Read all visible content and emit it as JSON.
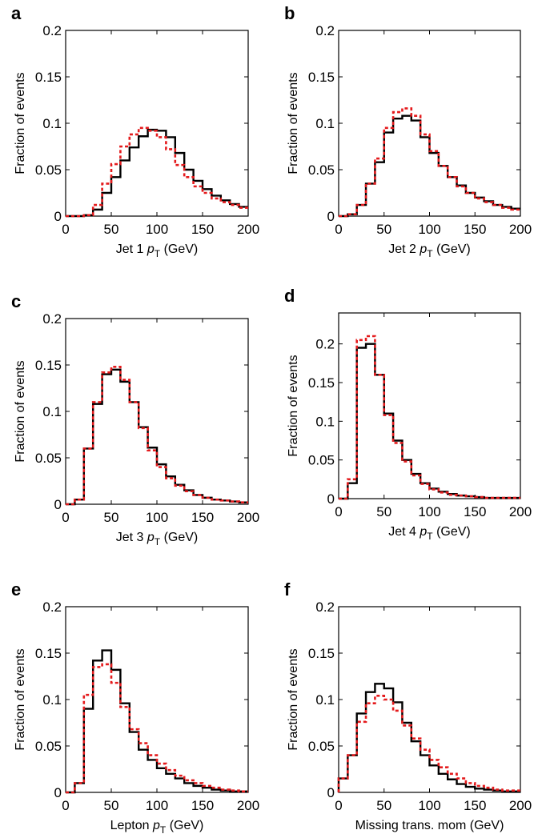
{
  "chart_data": [
    {
      "panel": "a",
      "type": "line",
      "step": true,
      "xlabel_main": "Jet 1 ",
      "xlabel_var": "p",
      "xlabel_sub": "T",
      "xlabel_unit": " (GeV)",
      "ylabel": "Fraction of events",
      "xlim": [
        0,
        200
      ],
      "ylim": [
        0,
        0.2
      ],
      "xticks": [
        "0",
        "50",
        "100",
        "150",
        "200"
      ],
      "yticks": [
        "0",
        "0.05",
        "0.1",
        "0.15",
        "0.2"
      ],
      "bin_edges": [
        0,
        10,
        20,
        30,
        40,
        50,
        60,
        70,
        80,
        90,
        100,
        110,
        120,
        130,
        140,
        150,
        160,
        170,
        180,
        190,
        200
      ],
      "series": [
        {
          "values": [
            0.0,
            0.0,
            0.001,
            0.007,
            0.025,
            0.042,
            0.06,
            0.074,
            0.086,
            0.093,
            0.092,
            0.085,
            0.068,
            0.05,
            0.038,
            0.029,
            0.022,
            0.017,
            0.013,
            0.01
          ],
          "color": "#000000",
          "style": "solid"
        },
        {
          "values": [
            0.0,
            0.0,
            0.001,
            0.012,
            0.035,
            0.056,
            0.075,
            0.088,
            0.095,
            0.092,
            0.085,
            0.072,
            0.055,
            0.042,
            0.032,
            0.025,
            0.019,
            0.015,
            0.012,
            0.009
          ],
          "color": "#e41a1c",
          "style": "dotted"
        }
      ]
    },
    {
      "panel": "b",
      "type": "line",
      "step": true,
      "xlabel_main": "Jet 2 ",
      "xlabel_var": "p",
      "xlabel_sub": "T",
      "xlabel_unit": " (GeV)",
      "ylabel": "Fraction of events",
      "xlim": [
        0,
        200
      ],
      "ylim": [
        0,
        0.2
      ],
      "xticks": [
        "0",
        "50",
        "100",
        "150",
        "200"
      ],
      "yticks": [
        "0",
        "0.05",
        "0.1",
        "0.15",
        "0.2"
      ],
      "bin_edges": [
        0,
        10,
        20,
        30,
        40,
        50,
        60,
        70,
        80,
        90,
        100,
        110,
        120,
        130,
        140,
        150,
        160,
        170,
        180,
        190,
        200
      ],
      "series": [
        {
          "values": [
            0.0,
            0.002,
            0.012,
            0.035,
            0.058,
            0.09,
            0.105,
            0.108,
            0.103,
            0.085,
            0.068,
            0.054,
            0.042,
            0.033,
            0.025,
            0.02,
            0.016,
            0.012,
            0.01,
            0.008
          ],
          "color": "#000000",
          "style": "solid"
        },
        {
          "values": [
            0.0,
            0.002,
            0.012,
            0.035,
            0.062,
            0.095,
            0.112,
            0.116,
            0.108,
            0.088,
            0.07,
            0.054,
            0.042,
            0.032,
            0.025,
            0.019,
            0.015,
            0.012,
            0.009,
            0.007
          ],
          "color": "#e41a1c",
          "style": "dotted"
        }
      ]
    },
    {
      "panel": "c",
      "type": "line",
      "step": true,
      "xlabel_main": "Jet 3 ",
      "xlabel_var": "p",
      "xlabel_sub": "T",
      "xlabel_unit": " (GeV)",
      "ylabel": "Fraction of events",
      "xlim": [
        0,
        200
      ],
      "ylim": [
        0,
        0.2
      ],
      "xticks": [
        "0",
        "50",
        "100",
        "150",
        "200"
      ],
      "yticks": [
        "0",
        "0.05",
        "0.1",
        "0.15",
        "0.2"
      ],
      "bin_edges": [
        0,
        10,
        20,
        30,
        40,
        50,
        60,
        70,
        80,
        90,
        100,
        110,
        120,
        130,
        140,
        150,
        160,
        170,
        180,
        190,
        200
      ],
      "series": [
        {
          "values": [
            0.0,
            0.005,
            0.06,
            0.108,
            0.14,
            0.145,
            0.132,
            0.11,
            0.083,
            0.061,
            0.043,
            0.03,
            0.021,
            0.015,
            0.01,
            0.007,
            0.005,
            0.004,
            0.003,
            0.002
          ],
          "color": "#000000",
          "style": "solid"
        },
        {
          "values": [
            0.0,
            0.005,
            0.06,
            0.11,
            0.142,
            0.148,
            0.134,
            0.11,
            0.082,
            0.058,
            0.04,
            0.028,
            0.02,
            0.014,
            0.01,
            0.007,
            0.005,
            0.004,
            0.003,
            0.002
          ],
          "color": "#e41a1c",
          "style": "dotted"
        }
      ]
    },
    {
      "panel": "d",
      "type": "line",
      "step": true,
      "xlabel_main": "Jet 4 ",
      "xlabel_var": "p",
      "xlabel_sub": "T",
      "xlabel_unit": " (GeV)",
      "ylabel": "Fraction of events",
      "xlim": [
        0,
        200
      ],
      "ylim": [
        0,
        0.24
      ],
      "xticks": [
        "0",
        "50",
        "100",
        "150",
        "200"
      ],
      "yticks": [
        "0",
        "0.05",
        "0.1",
        "0.15",
        "0.2"
      ],
      "bin_edges": [
        0,
        10,
        20,
        30,
        40,
        50,
        60,
        70,
        80,
        90,
        100,
        110,
        120,
        130,
        140,
        150,
        160,
        170,
        180,
        190,
        200
      ],
      "series": [
        {
          "values": [
            0.0,
            0.02,
            0.195,
            0.2,
            0.16,
            0.11,
            0.075,
            0.05,
            0.032,
            0.02,
            0.013,
            0.009,
            0.006,
            0.004,
            0.003,
            0.002,
            0.001,
            0.001,
            0.001,
            0.001
          ],
          "color": "#000000",
          "style": "solid"
        },
        {
          "values": [
            0.0,
            0.025,
            0.205,
            0.21,
            0.16,
            0.108,
            0.072,
            0.048,
            0.03,
            0.019,
            0.012,
            0.008,
            0.005,
            0.004,
            0.003,
            0.002,
            0.001,
            0.001,
            0.001,
            0.001
          ],
          "color": "#e41a1c",
          "style": "dotted"
        }
      ]
    },
    {
      "panel": "e",
      "type": "line",
      "step": true,
      "xlabel_main": "Lepton ",
      "xlabel_var": "p",
      "xlabel_sub": "T",
      "xlabel_unit": " (GeV)",
      "ylabel": "Fraction of events",
      "xlim": [
        0,
        200
      ],
      "ylim": [
        0,
        0.2
      ],
      "xticks": [
        "0",
        "50",
        "100",
        "150",
        "200"
      ],
      "yticks": [
        "0",
        "0.05",
        "0.1",
        "0.15",
        "0.2"
      ],
      "bin_edges": [
        0,
        10,
        20,
        30,
        40,
        50,
        60,
        70,
        80,
        90,
        100,
        110,
        120,
        130,
        140,
        150,
        160,
        170,
        180,
        190,
        200
      ],
      "series": [
        {
          "values": [
            0.0,
            0.01,
            0.09,
            0.142,
            0.153,
            0.132,
            0.096,
            0.065,
            0.046,
            0.035,
            0.026,
            0.02,
            0.015,
            0.01,
            0.007,
            0.005,
            0.003,
            0.002,
            0.001,
            0.001
          ],
          "color": "#000000",
          "style": "solid"
        },
        {
          "values": [
            0.0,
            0.01,
            0.105,
            0.135,
            0.138,
            0.118,
            0.092,
            0.068,
            0.053,
            0.04,
            0.031,
            0.024,
            0.018,
            0.013,
            0.01,
            0.007,
            0.005,
            0.003,
            0.002,
            0.001
          ],
          "color": "#e41a1c",
          "style": "dotted"
        }
      ]
    },
    {
      "panel": "f",
      "type": "line",
      "step": true,
      "xlabel_main": "Missing trans. mom (GeV)",
      "xlabel_var": "",
      "xlabel_sub": "",
      "xlabel_unit": "",
      "ylabel": "Fraction of events",
      "xlim": [
        0,
        200
      ],
      "ylim": [
        0,
        0.2
      ],
      "xticks": [
        "0",
        "50",
        "100",
        "150",
        "200"
      ],
      "yticks": [
        "0",
        "0.05",
        "0.1",
        "0.15",
        "0.2"
      ],
      "bin_edges": [
        0,
        10,
        20,
        30,
        40,
        50,
        60,
        70,
        80,
        90,
        100,
        110,
        120,
        130,
        140,
        150,
        160,
        170,
        180,
        190,
        200
      ],
      "series": [
        {
          "values": [
            0.015,
            0.04,
            0.085,
            0.108,
            0.117,
            0.112,
            0.097,
            0.075,
            0.055,
            0.04,
            0.029,
            0.02,
            0.014,
            0.009,
            0.006,
            0.004,
            0.003,
            0.002,
            0.001,
            0.001
          ],
          "color": "#000000",
          "style": "solid"
        },
        {
          "values": [
            0.015,
            0.04,
            0.076,
            0.096,
            0.104,
            0.1,
            0.088,
            0.072,
            0.058,
            0.046,
            0.035,
            0.027,
            0.02,
            0.015,
            0.01,
            0.007,
            0.005,
            0.003,
            0.002,
            0.002
          ],
          "color": "#e41a1c",
          "style": "dotted"
        }
      ]
    }
  ]
}
